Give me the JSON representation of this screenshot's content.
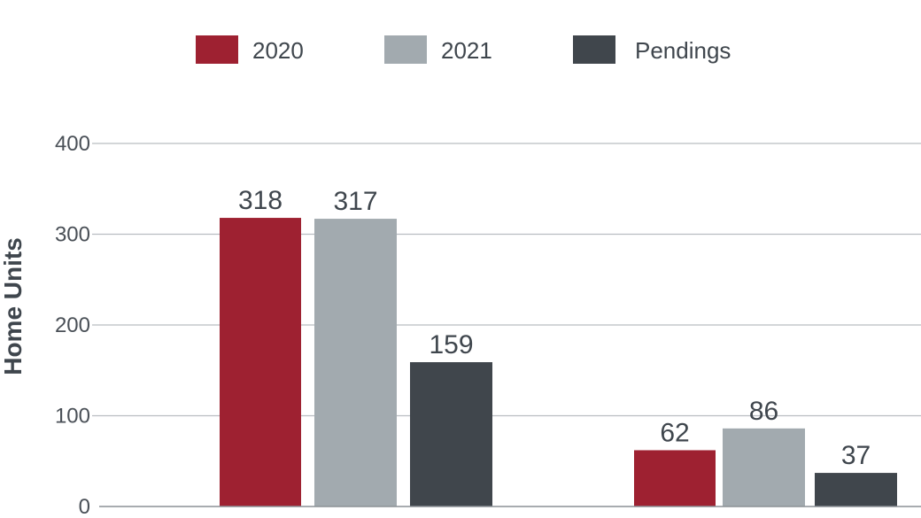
{
  "chart_data": {
    "type": "bar",
    "title": "",
    "xlabel": "",
    "ylabel": "Home Units",
    "ylim": [
      0,
      400
    ],
    "yticks": [
      0,
      100,
      200,
      300,
      400
    ],
    "categories": [
      "",
      ""
    ],
    "grid": true,
    "legend_position": "top-center",
    "series": [
      {
        "name": "2020",
        "color": "#9e2131",
        "values": [
          318,
          62
        ]
      },
      {
        "name": "2021",
        "color": "#a2aaaf",
        "values": [
          317,
          86
        ]
      },
      {
        "name": "Pendings",
        "color": "#40464c",
        "values": [
          159,
          37
        ]
      }
    ]
  }
}
